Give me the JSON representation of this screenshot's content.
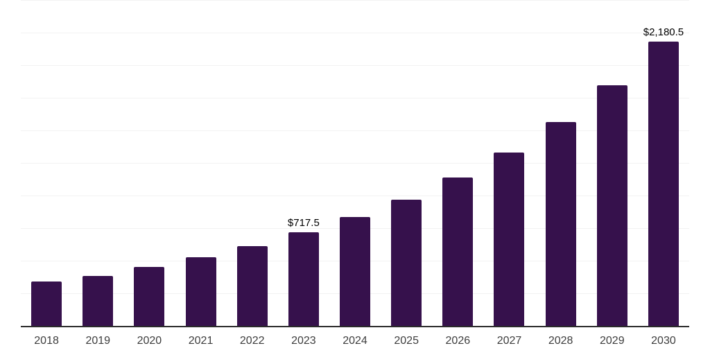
{
  "chart_data": {
    "type": "bar",
    "categories": [
      "2018",
      "2019",
      "2020",
      "2021",
      "2022",
      "2023",
      "2024",
      "2025",
      "2026",
      "2027",
      "2028",
      "2029",
      "2030"
    ],
    "values": [
      340,
      383,
      452,
      527,
      612,
      717.5,
      835,
      968,
      1138,
      1330,
      1564,
      1845,
      2180.5
    ],
    "bar_labels": [
      "",
      "",
      "",
      "",
      "",
      "$717.5",
      "",
      "",
      "",
      "",
      "",
      "",
      "$2,180.5"
    ],
    "title": "",
    "xlabel": "",
    "ylabel": "",
    "ylim": [
      0,
      2500
    ],
    "grid": true,
    "gridline_interval": 250,
    "legend": false,
    "colors": {
      "bar": "#36114c",
      "axis_line": "#2b2b2b",
      "gridline": "#f2f2f2",
      "tick_label": "#3d3d3d",
      "data_label": "#000000",
      "background": "#ffffff"
    }
  }
}
